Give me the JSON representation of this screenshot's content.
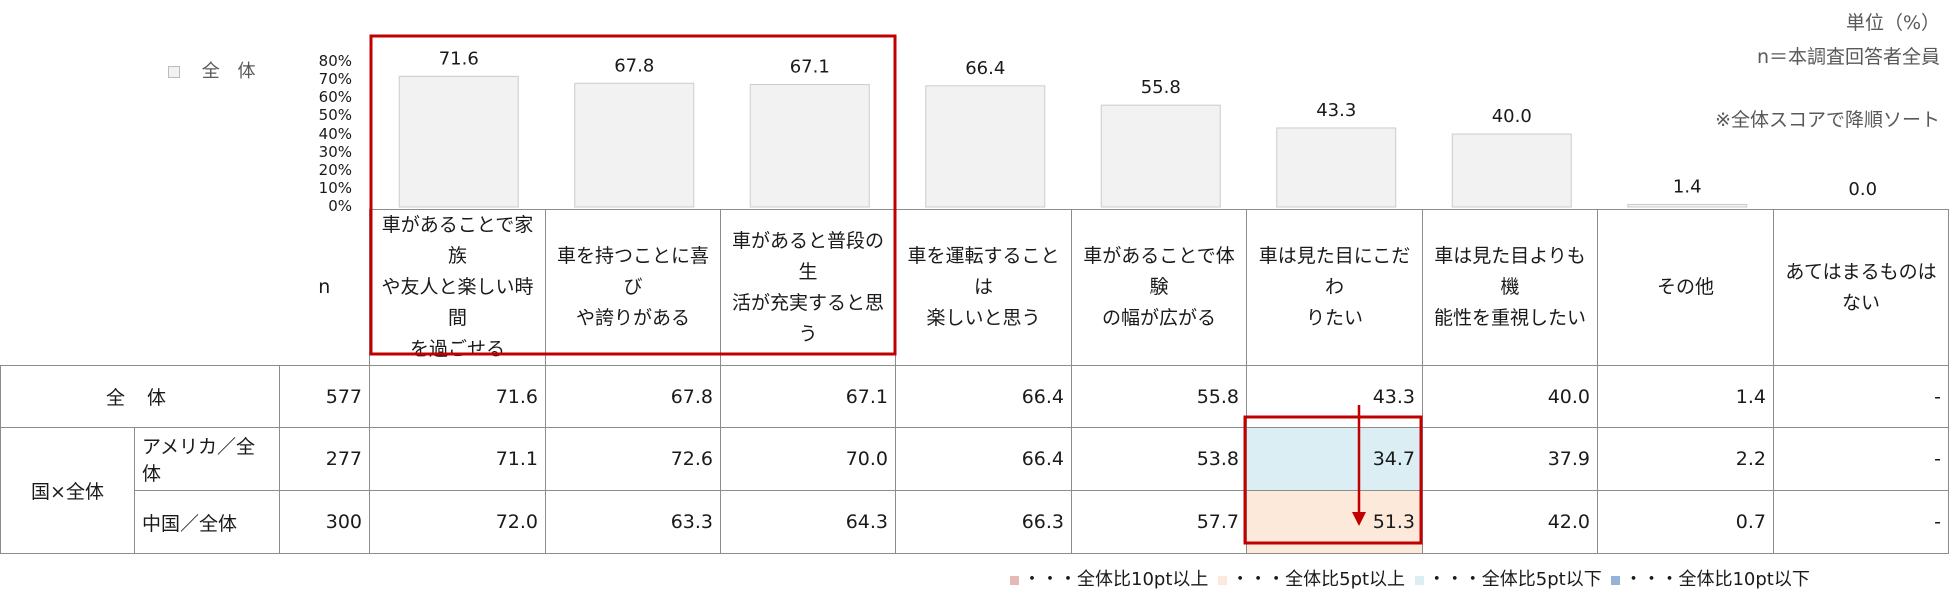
{
  "units_note": "単位（%）",
  "sample_note": "n＝本調査回答者全員",
  "sort_note": "※全体スコアで降順ソート",
  "legend_label": "全 体",
  "n_header": "n",
  "chart_data": {
    "type": "bar",
    "categories": [
      "車があることで家族や友人と楽しい時間を過ごせる",
      "車を持つことに喜びや誇りがある",
      "車があると普段の生活が充実すると思う",
      "車を運転することは楽しいと思う",
      "車があることで体験の幅が広がる",
      "車は見た目にこだわりたい",
      "車は見た目よりも機能性を重視したい",
      "その他",
      "あてはまるものはない"
    ],
    "series": [
      {
        "name": "全 体",
        "values": [
          71.6,
          67.8,
          67.1,
          66.4,
          55.8,
          43.3,
          40.0,
          1.4,
          0.0
        ]
      }
    ],
    "value_labels": [
      "71.6",
      "67.8",
      "67.1",
      "66.4",
      "55.8",
      "43.3",
      "40.0",
      "1.4",
      "0.0"
    ],
    "ylim": [
      0,
      80
    ],
    "yticks": [
      "80%",
      "70%",
      "60%",
      "50%",
      "40%",
      "30%",
      "20%",
      "10%",
      "0%"
    ],
    "bar_color": "#f2f2f2",
    "bar_edge_color": "#cccccc"
  },
  "col_headers": [
    [
      "車があることで家族",
      "や友人と楽しい時間",
      "を過ごせる"
    ],
    [
      "車を持つことに喜び",
      "や誇りがある"
    ],
    [
      "車があると普段の生",
      "活が充実すると思う"
    ],
    [
      "車を運転することは",
      "楽しいと思う"
    ],
    [
      "車があることで体験",
      "の幅が広がる"
    ],
    [
      "車は見た目にこだわ",
      "りたい"
    ],
    [
      "車は見た目よりも機",
      "能性を重視したい"
    ],
    [
      "その他"
    ],
    [
      "あてはまるものはない"
    ]
  ],
  "rows": {
    "total": {
      "label": "全 体",
      "n": "577",
      "values": [
        "71.6",
        "67.8",
        "67.1",
        "66.4",
        "55.8",
        "43.3",
        "40.0",
        "1.4",
        "-"
      ]
    },
    "group_label": "国×全体",
    "usa": {
      "label": "アメリカ／全体",
      "n": "277",
      "values": [
        "71.1",
        "72.6",
        "70.0",
        "66.4",
        "53.8",
        "34.7",
        "37.9",
        "2.2",
        "-"
      ]
    },
    "china": {
      "label": "中国／全体",
      "n": "300",
      "values": [
        "72.0",
        "63.3",
        "64.3",
        "66.3",
        "57.7",
        "51.3",
        "42.0",
        "0.7",
        "-"
      ]
    }
  },
  "highlight_colors": {
    "plus10": "#e6b8b7",
    "plus5": "#fde9d9",
    "minus5": "#daeef3",
    "minus10": "#95b3d7",
    "frame": "#c00000"
  },
  "bottom_legend": [
    {
      "key": "plus10",
      "text": "・・・全体比10pt以上"
    },
    {
      "key": "plus5",
      "text": "・・・全体比5pt以上"
    },
    {
      "key": "minus5",
      "text": "・・・全体比5pt以下"
    },
    {
      "key": "minus10",
      "text": "・・・全体比10pt以下"
    }
  ]
}
